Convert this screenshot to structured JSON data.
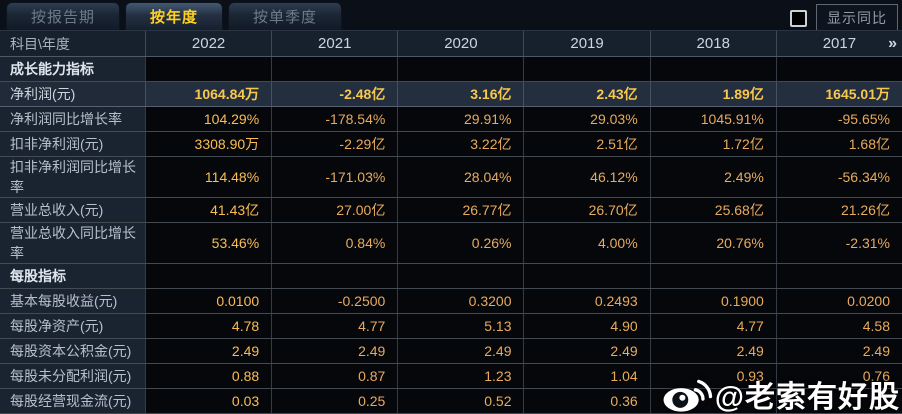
{
  "tabs": [
    {
      "label": "按报告期",
      "active": false
    },
    {
      "label": "按年度",
      "active": true
    },
    {
      "label": "按单季度",
      "active": false
    }
  ],
  "controls": {
    "show_yoy_label": "显示同比",
    "checkbox_checked": false
  },
  "table": {
    "corner_label": "科目\\年度",
    "year_columns": [
      "2022",
      "2021",
      "2020",
      "2019",
      "2018",
      "2017"
    ],
    "more_indicator": "»",
    "rows": [
      {
        "type": "section",
        "label": "成长能力指标",
        "values": [
          "",
          "",
          "",
          "",
          "",
          ""
        ]
      },
      {
        "type": "data",
        "highlight": true,
        "label": "净利润(元)",
        "values": [
          "1064.84万",
          "-2.48亿",
          "3.16亿",
          "2.43亿",
          "1.89亿",
          "1645.01万"
        ]
      },
      {
        "type": "data",
        "highlight": false,
        "label": "净利润同比增长率",
        "values": [
          "104.29%",
          "-178.54%",
          "29.91%",
          "29.03%",
          "1045.91%",
          "-95.65%"
        ]
      },
      {
        "type": "data",
        "highlight": false,
        "label": "扣非净利润(元)",
        "values": [
          "3308.90万",
          "-2.29亿",
          "3.22亿",
          "2.51亿",
          "1.72亿",
          "1.68亿"
        ]
      },
      {
        "type": "data",
        "highlight": false,
        "label": "扣非净利润同比增长率",
        "values": [
          "114.48%",
          "-171.03%",
          "28.04%",
          "46.12%",
          "2.49%",
          "-56.34%"
        ]
      },
      {
        "type": "data",
        "highlight": false,
        "label": "营业总收入(元)",
        "values": [
          "41.43亿",
          "27.00亿",
          "26.77亿",
          "26.70亿",
          "25.68亿",
          "21.26亿"
        ]
      },
      {
        "type": "data",
        "highlight": false,
        "label": "营业总收入同比增长率",
        "values": [
          "53.46%",
          "0.84%",
          "0.26%",
          "4.00%",
          "20.76%",
          "-2.31%"
        ]
      },
      {
        "type": "section",
        "label": "每股指标",
        "values": [
          "",
          "",
          "",
          "",
          "",
          ""
        ]
      },
      {
        "type": "data",
        "highlight": false,
        "label": "基本每股收益(元)",
        "values": [
          "0.0100",
          "-0.2500",
          "0.3200",
          "0.2493",
          "0.1900",
          "0.0200"
        ]
      },
      {
        "type": "data",
        "highlight": false,
        "label": "每股净资产(元)",
        "values": [
          "4.78",
          "4.77",
          "5.13",
          "4.90",
          "4.77",
          "4.58"
        ]
      },
      {
        "type": "data",
        "highlight": false,
        "label": "每股资本公积金(元)",
        "values": [
          "2.49",
          "2.49",
          "2.49",
          "2.49",
          "2.49",
          "2.49"
        ]
      },
      {
        "type": "data",
        "highlight": false,
        "label": "每股未分配利润(元)",
        "values": [
          "0.88",
          "0.87",
          "1.23",
          "1.04",
          "0.93",
          "0.76"
        ]
      },
      {
        "type": "data",
        "highlight": false,
        "label": "每股经营现金流(元)",
        "values": [
          "0.03",
          "0.25",
          "0.52",
          "0.36",
          "",
          ""
        ]
      }
    ]
  },
  "watermark": {
    "icon": "weibo-icon",
    "text": "@老索有好股"
  },
  "colors": {
    "active_tab_text": "#ffd21e",
    "value_orange": "#e9aa5d",
    "highlight_value_gold": "#f8c84e",
    "label_column_bg": "#1a2330",
    "header_row_bg": "#17202d",
    "highlight_row_bg": "#232e3e",
    "page_bg": "#0a0f18"
  }
}
